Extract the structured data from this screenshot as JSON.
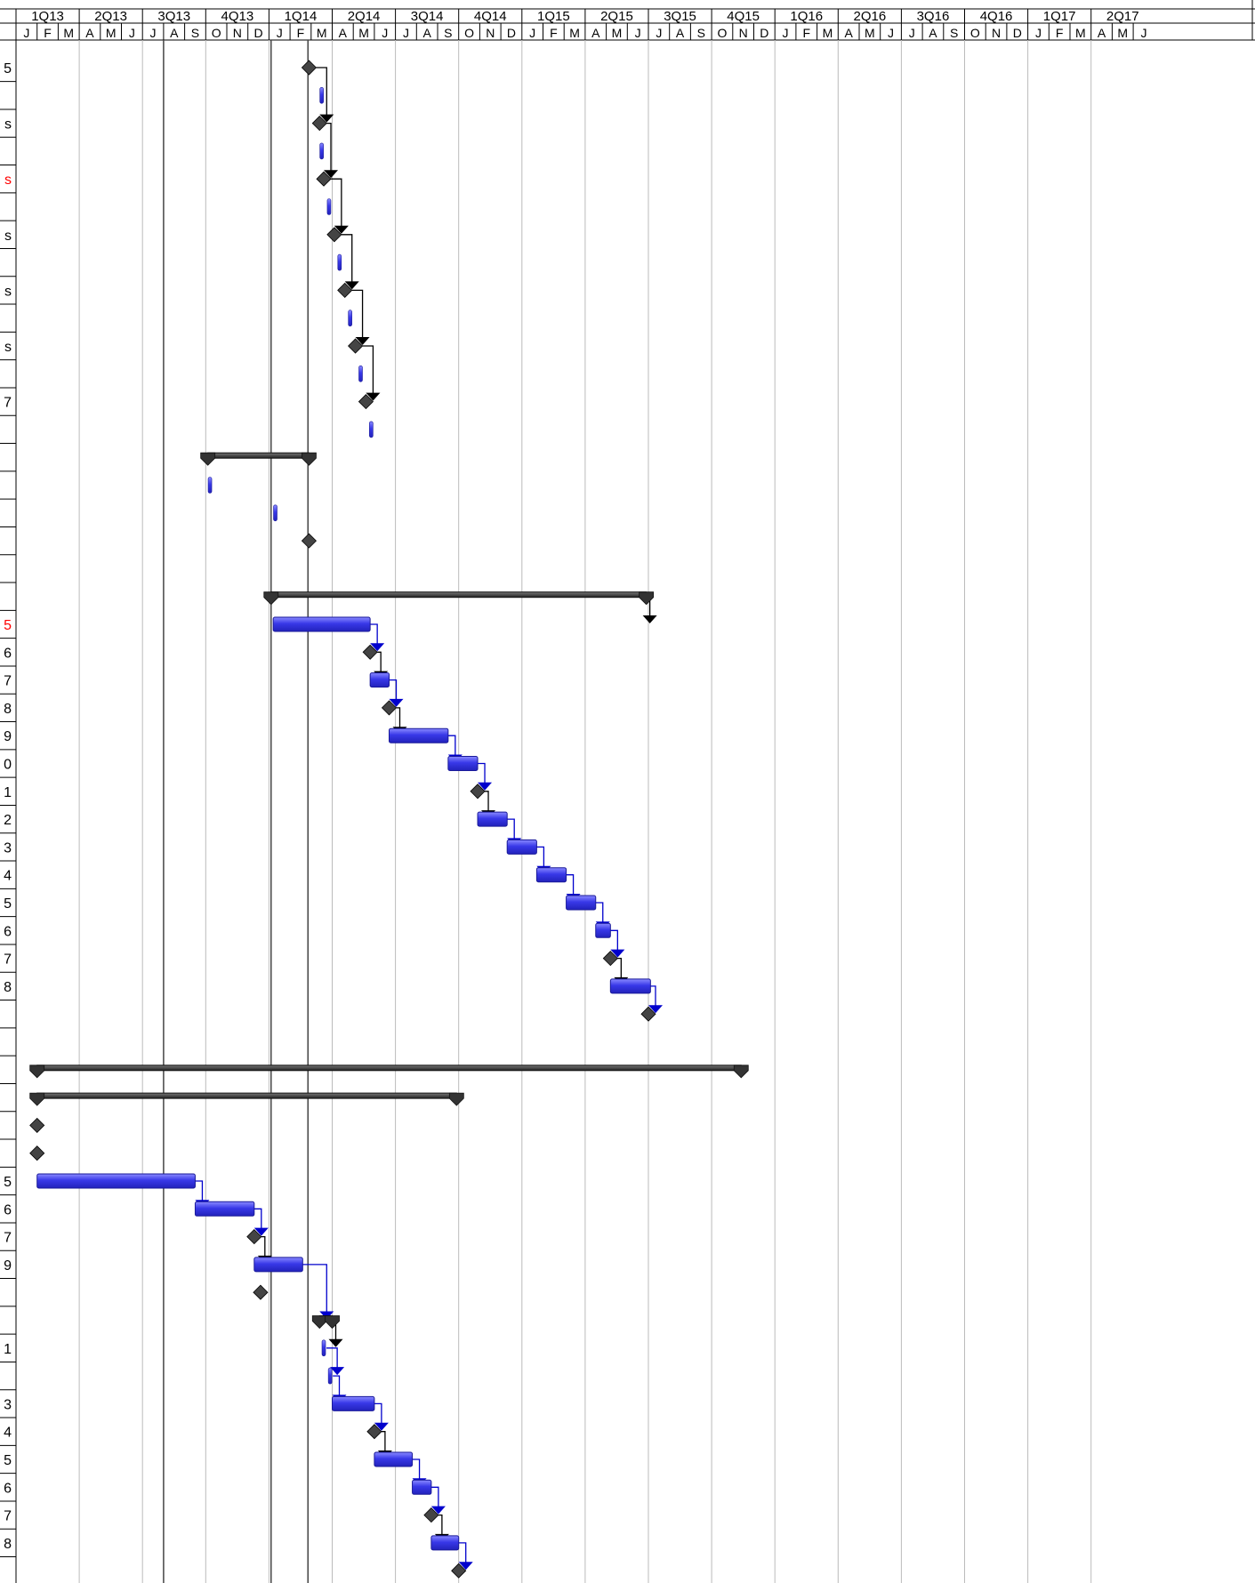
{
  "chart_data": {
    "type": "gantt",
    "title": "",
    "timescale": {
      "quarters": [
        "1Q13",
        "2Q13",
        "3Q13",
        "4Q13",
        "1Q14",
        "2Q14",
        "3Q14",
        "4Q14",
        "1Q15",
        "2Q15",
        "3Q15",
        "4Q15",
        "1Q16",
        "2Q16",
        "3Q16",
        "4Q16",
        "1Q17",
        "2Q17"
      ],
      "months": [
        "J",
        "F",
        "M",
        "A",
        "M",
        "J",
        "J",
        "A",
        "S",
        "O",
        "N",
        "D",
        "J",
        "F",
        "M",
        "A",
        "M",
        "J",
        "J",
        "A",
        "S",
        "O",
        "N",
        "D",
        "J",
        "F",
        "M",
        "A",
        "M",
        "J",
        "J",
        "A",
        "S",
        "O",
        "N",
        "D",
        "J",
        "F",
        "M",
        "A",
        "M",
        "J",
        "J",
        "A",
        "S",
        "O",
        "N",
        "D",
        "J",
        "F",
        "M",
        "A",
        "M",
        "J"
      ],
      "start": "2013-01",
      "end": "2017-06"
    },
    "colors": {
      "task": "#3333dd",
      "summary": "#333333",
      "milestone": "#444444",
      "link": "#0000cc",
      "grid": "#bbbbbb",
      "label_red": "#ff0000"
    },
    "row_labels": [
      {
        "text": "5",
        "row": 0
      },
      {
        "text": "s",
        "row": 2
      },
      {
        "text": "s",
        "row": 4,
        "color": "red"
      },
      {
        "text": "s",
        "row": 6
      },
      {
        "text": "s",
        "row": 8
      },
      {
        "text": "s",
        "row": 10
      },
      {
        "text": "7",
        "row": 12
      },
      {
        "text": "5",
        "row": 20,
        "color": "red"
      },
      {
        "text": "6",
        "row": 21
      },
      {
        "text": "7",
        "row": 22
      },
      {
        "text": "8",
        "row": 23
      },
      {
        "text": "9",
        "row": 24
      },
      {
        "text": "0",
        "row": 25
      },
      {
        "text": "1",
        "row": 26
      },
      {
        "text": "2",
        "row": 27
      },
      {
        "text": "3",
        "row": 28
      },
      {
        "text": "4",
        "row": 29
      },
      {
        "text": "5",
        "row": 30
      },
      {
        "text": "6",
        "row": 31
      },
      {
        "text": "7",
        "row": 32
      },
      {
        "text": "8",
        "row": 33
      },
      {
        "text": "5",
        "row": 40
      },
      {
        "text": "6",
        "row": 41
      },
      {
        "text": "7",
        "row": 42
      },
      {
        "text": "9",
        "row": 43
      },
      {
        "text": "1",
        "row": 46
      },
      {
        "text": "3",
        "row": 48
      },
      {
        "text": "4",
        "row": 49
      },
      {
        "text": "5",
        "row": 50
      },
      {
        "text": "6",
        "row": 51
      },
      {
        "text": "7",
        "row": 52
      },
      {
        "text": "8",
        "row": 53
      }
    ],
    "markers": [
      {
        "kind": "milestone",
        "row": 0,
        "date": 13.9
      },
      {
        "kind": "short",
        "row": 1,
        "date": 14.5
      },
      {
        "kind": "milestone",
        "row": 2,
        "date": 14.4
      },
      {
        "kind": "short",
        "row": 3,
        "date": 14.5
      },
      {
        "kind": "milestone",
        "row": 4,
        "date": 14.6
      },
      {
        "kind": "short",
        "row": 5,
        "date": 14.85
      },
      {
        "kind": "milestone",
        "row": 6,
        "date": 15.1
      },
      {
        "kind": "short",
        "row": 7,
        "date": 15.35
      },
      {
        "kind": "milestone",
        "row": 8,
        "date": 15.6
      },
      {
        "kind": "short",
        "row": 9,
        "date": 15.85
      },
      {
        "kind": "milestone",
        "row": 10,
        "date": 16.1
      },
      {
        "kind": "short",
        "row": 11,
        "date": 16.35
      },
      {
        "kind": "milestone",
        "row": 12,
        "date": 16.6
      },
      {
        "kind": "short",
        "row": 13,
        "date": 16.85
      },
      {
        "kind": "summary",
        "row": 14,
        "start": 9.1,
        "end": 13.9
      },
      {
        "kind": "short",
        "row": 15,
        "date": 9.2
      },
      {
        "kind": "short",
        "row": 16,
        "date": 12.3
      },
      {
        "kind": "milestone",
        "row": 17,
        "date": 13.9
      },
      {
        "kind": "summary",
        "row": 19,
        "start": 12.1,
        "end": 29.9
      },
      {
        "kind": "task",
        "row": 20,
        "start": 12.2,
        "end": 16.8
      },
      {
        "kind": "milestone",
        "row": 21,
        "date": 16.8
      },
      {
        "kind": "task",
        "row": 22,
        "start": 16.8,
        "end": 17.7
      },
      {
        "kind": "milestone",
        "row": 23,
        "date": 17.7
      },
      {
        "kind": "task",
        "row": 24,
        "start": 17.7,
        "end": 20.5
      },
      {
        "kind": "task",
        "row": 25,
        "start": 20.5,
        "end": 21.9
      },
      {
        "kind": "milestone",
        "row": 26,
        "date": 21.9
      },
      {
        "kind": "task",
        "row": 27,
        "start": 21.9,
        "end": 23.3
      },
      {
        "kind": "task",
        "row": 28,
        "start": 23.3,
        "end": 24.7
      },
      {
        "kind": "task",
        "row": 29,
        "start": 24.7,
        "end": 26.1
      },
      {
        "kind": "task",
        "row": 30,
        "start": 26.1,
        "end": 27.5
      },
      {
        "kind": "task",
        "row": 31,
        "start": 27.5,
        "end": 28.2
      },
      {
        "kind": "milestone",
        "row": 32,
        "date": 28.2
      },
      {
        "kind": "task",
        "row": 33,
        "start": 28.2,
        "end": 30.1
      },
      {
        "kind": "milestone",
        "row": 34,
        "date": 30.0
      },
      {
        "kind": "summary",
        "row": 36,
        "start": 1.0,
        "end": 34.4
      },
      {
        "kind": "summary",
        "row": 37,
        "start": 1.0,
        "end": 20.9
      },
      {
        "kind": "milestone",
        "row": 38,
        "date": 1.0
      },
      {
        "kind": "milestone",
        "row": 39,
        "date": 1.0
      },
      {
        "kind": "task",
        "row": 40,
        "start": 1.0,
        "end": 8.5
      },
      {
        "kind": "task",
        "row": 41,
        "start": 8.5,
        "end": 11.3
      },
      {
        "kind": "milestone",
        "row": 42,
        "date": 11.3
      },
      {
        "kind": "task",
        "row": 43,
        "start": 11.3,
        "end": 13.6
      },
      {
        "kind": "milestone",
        "row": 44,
        "date": 11.6
      },
      {
        "kind": "summary",
        "row": 45,
        "start": 14.4,
        "end": 15.0
      },
      {
        "kind": "short",
        "row": 46,
        "date": 14.6
      },
      {
        "kind": "short",
        "row": 47,
        "date": 14.9
      },
      {
        "kind": "task",
        "row": 48,
        "start": 15.0,
        "end": 17.0
      },
      {
        "kind": "milestone",
        "row": 49,
        "date": 17.0
      },
      {
        "kind": "task",
        "row": 50,
        "start": 17.0,
        "end": 18.8
      },
      {
        "kind": "task",
        "row": 51,
        "start": 18.8,
        "end": 19.7
      },
      {
        "kind": "milestone",
        "row": 52,
        "date": 19.7
      },
      {
        "kind": "task",
        "row": 53,
        "start": 19.7,
        "end": 21.0
      },
      {
        "kind": "milestone",
        "row": 54,
        "date": 21.0
      }
    ],
    "links": [
      [
        0,
        2
      ],
      [
        2,
        4
      ],
      [
        4,
        6
      ],
      [
        6,
        8
      ],
      [
        8,
        10
      ],
      [
        10,
        12
      ],
      [
        19,
        20
      ],
      [
        20,
        21
      ],
      [
        21,
        22
      ],
      [
        22,
        23
      ],
      [
        23,
        24
      ],
      [
        24,
        25
      ],
      [
        25,
        26
      ],
      [
        26,
        27
      ],
      [
        27,
        28
      ],
      [
        28,
        29
      ],
      [
        29,
        30
      ],
      [
        30,
        31
      ],
      [
        31,
        32
      ],
      [
        32,
        33
      ],
      [
        33,
        34
      ],
      [
        40,
        41
      ],
      [
        41,
        42
      ],
      [
        42,
        43
      ],
      [
        43,
        45
      ],
      [
        45,
        46
      ],
      [
        46,
        47
      ],
      [
        47,
        48
      ],
      [
        48,
        49
      ],
      [
        49,
        50
      ],
      [
        50,
        51
      ],
      [
        51,
        52
      ],
      [
        52,
        53
      ],
      [
        53,
        54
      ]
    ],
    "vertical_lines": [
      7.0,
      12.1,
      13.85
    ]
  }
}
